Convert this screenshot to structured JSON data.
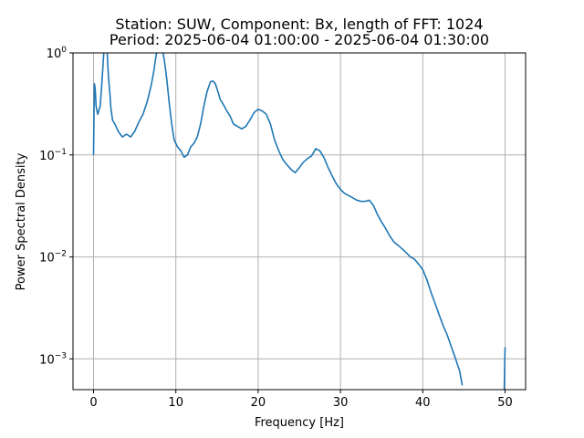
{
  "chart_data": {
    "type": "line",
    "title_line1": "Station: SUW, Component: Bx, length of FFT: 1024",
    "title_line2": "Period: 2025-06-04 01:00:00 - 2025-06-04 01:30:00",
    "xlabel": "Frequency [Hz]",
    "ylabel": "Power Spectral Density",
    "xlim": [
      -2.5,
      52.5
    ],
    "ylim": [
      0.0005,
      1
    ],
    "yscale": "log",
    "grid": true,
    "x_ticks": [
      0,
      10,
      20,
      30,
      40,
      50
    ],
    "y_ticks": [
      {
        "value": 0.001,
        "base": "10",
        "exp": "−3"
      },
      {
        "value": 0.01,
        "base": "10",
        "exp": "−2"
      },
      {
        "value": 0.1,
        "base": "10",
        "exp": "−1"
      },
      {
        "value": 1,
        "base": "10",
        "exp": "0"
      }
    ],
    "color": "#1f77b4",
    "series": [
      {
        "x": [
          0.0,
          0.1,
          0.2,
          0.3,
          0.5,
          0.8,
          1.0,
          1.2,
          1.4,
          1.6,
          1.8,
          2.0,
          2.1,
          2.3,
          2.6,
          3.0,
          3.5,
          4.0,
          4.5,
          5.0,
          5.5,
          6.0,
          6.5,
          7.0,
          7.3,
          7.6,
          7.9,
          8.1,
          8.3,
          8.6,
          8.9,
          9.2,
          9.5,
          9.8,
          10.2,
          10.6,
          11.0,
          11.4,
          11.8,
          12.2,
          12.6,
          13.0,
          13.4,
          13.8,
          14.2,
          14.5,
          14.8,
          15.1,
          15.4,
          15.8,
          16.2,
          16.6,
          17.0,
          17.5,
          18.0,
          18.5,
          19.0,
          19.5,
          20.0,
          20.5,
          21.0,
          21.5,
          22.0,
          22.5,
          23.0,
          23.5,
          24.0,
          24.5,
          25.0,
          25.5,
          26.0,
          26.5,
          27.0,
          27.5,
          28.0,
          28.5,
          29.0,
          29.5,
          30.0,
          30.5,
          31.0,
          31.5,
          32.0,
          32.5,
          33.0,
          33.5,
          34.0,
          34.5,
          35.0,
          35.5,
          36.0,
          36.5,
          37.0,
          37.5,
          38.0,
          38.5,
          39.0,
          39.5,
          40.0,
          40.5,
          41.0,
          41.5,
          42.0,
          42.5,
          43.0,
          43.5,
          44.0,
          44.5,
          44.8
        ],
        "y": [
          0.1,
          0.5,
          0.45,
          0.3,
          0.25,
          0.3,
          0.5,
          0.9,
          1.5,
          1.2,
          0.6,
          0.38,
          0.29,
          0.22,
          0.2,
          0.17,
          0.15,
          0.16,
          0.15,
          0.17,
          0.21,
          0.25,
          0.33,
          0.48,
          0.65,
          0.95,
          1.2,
          1.25,
          1.15,
          0.85,
          0.55,
          0.32,
          0.2,
          0.14,
          0.12,
          0.11,
          0.095,
          0.1,
          0.12,
          0.13,
          0.15,
          0.2,
          0.3,
          0.42,
          0.52,
          0.53,
          0.5,
          0.42,
          0.35,
          0.31,
          0.27,
          0.24,
          0.2,
          0.19,
          0.18,
          0.19,
          0.22,
          0.26,
          0.28,
          0.27,
          0.25,
          0.2,
          0.14,
          0.11,
          0.09,
          0.08,
          0.072,
          0.067,
          0.075,
          0.085,
          0.092,
          0.098,
          0.115,
          0.11,
          0.094,
          0.075,
          0.062,
          0.052,
          0.046,
          0.042,
          0.04,
          0.038,
          0.036,
          0.035,
          0.035,
          0.036,
          0.032,
          0.026,
          0.022,
          0.019,
          0.016,
          0.014,
          0.013,
          0.012,
          0.011,
          0.01,
          0.0095,
          0.0085,
          0.0075,
          0.006,
          0.0045,
          0.0035,
          0.0027,
          0.0021,
          0.0017,
          0.0013,
          0.001,
          0.00075,
          0.00055
        ]
      },
      {
        "x": [
          49.9,
          49.95,
          50.0
        ],
        "y": [
          0.0005,
          0.0008,
          0.0013
        ]
      }
    ]
  }
}
